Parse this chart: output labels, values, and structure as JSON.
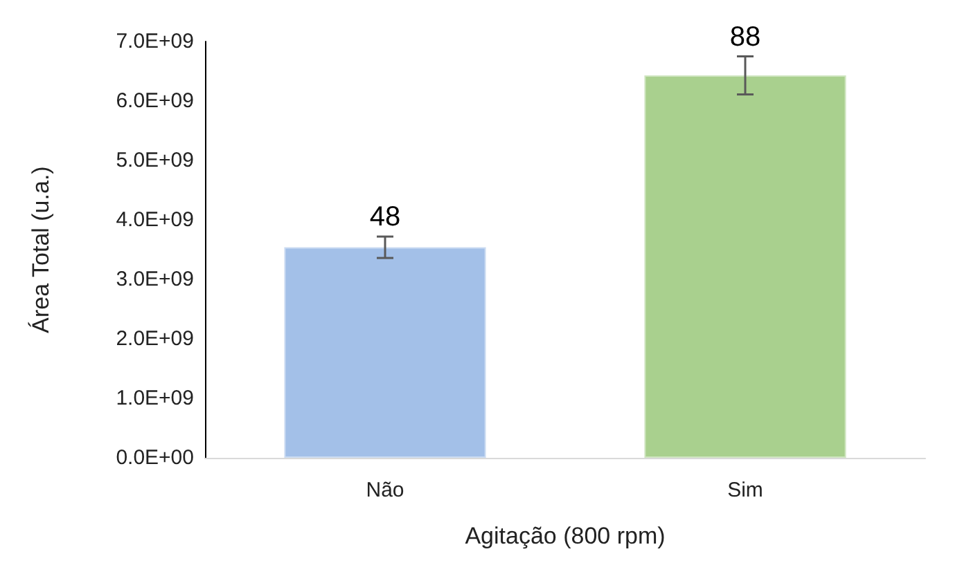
{
  "chart_data": {
    "type": "bar",
    "xlabel": "Agitação (800 rpm)",
    "ylabel": "Área Total (u.a.)",
    "categories": [
      "Não",
      "Sim"
    ],
    "values": [
      3540000000.0,
      6430000000.0
    ],
    "colors": [
      "#a3c0e8",
      "#a9d08e"
    ],
    "errors": [
      180000000.0,
      320000000.0
    ],
    "annotations": [
      {
        "text": "48",
        "x": "Não",
        "y": 3720000000.0
      },
      {
        "text": "88",
        "x": "Sim",
        "y": 6750000000.0
      }
    ],
    "ylim": [
      0,
      7000000000.0
    ],
    "yticks": [
      {
        "value": 0,
        "label": "0.0E+00"
      },
      {
        "value": 1000000000.0,
        "label": "1.0E+09"
      },
      {
        "value": 2000000000.0,
        "label": "2.0E+09"
      },
      {
        "value": 3000000000.0,
        "label": "3.0E+09"
      },
      {
        "value": 4000000000.0,
        "label": "4.0E+09"
      },
      {
        "value": 5000000000.0,
        "label": "5.0E+09"
      },
      {
        "value": 6000000000.0,
        "label": "6.0E+09"
      },
      {
        "value": 7000000000.0,
        "label": "7.0E+09"
      }
    ],
    "grid": false
  }
}
